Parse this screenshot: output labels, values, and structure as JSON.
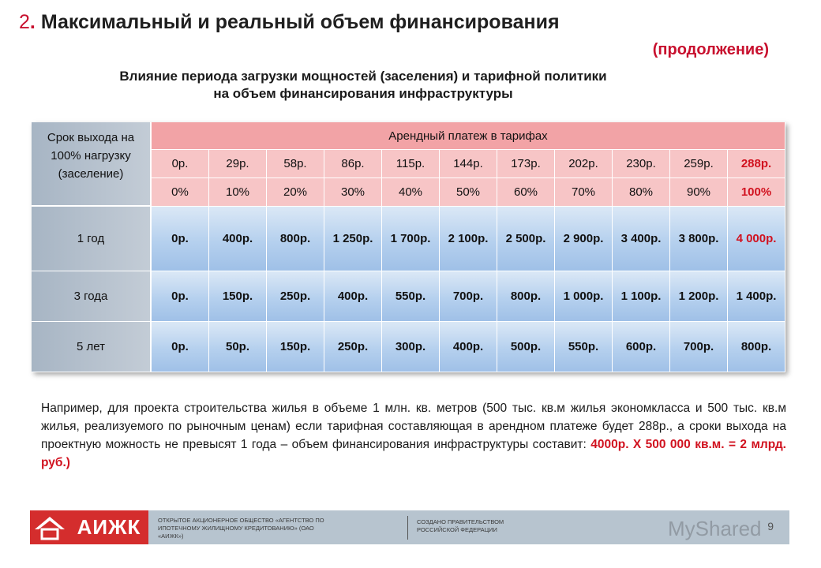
{
  "title": {
    "number": "2",
    "dot": ".",
    "text": "Максимальный и реальный объем финансирования"
  },
  "continuation": "(продолжение)",
  "heading": {
    "line1": "Влияние периода загрузки мощностей (заселения) и тарифной политики",
    "line2": "на объем финансирования инфраструктуры"
  },
  "table": {
    "corner": "Срок выхода на 100% нагрузку (заселение)",
    "group_header": "Арендный платеж в тарифах",
    "tariffs": [
      "0р.",
      "29р.",
      "58р.",
      "86р.",
      "115р.",
      "144р.",
      "173р.",
      "202р.",
      "230р.",
      "259р.",
      "288р."
    ],
    "percents": [
      "0%",
      "10%",
      "20%",
      "30%",
      "40%",
      "50%",
      "60%",
      "70%",
      "80%",
      "90%",
      "100%"
    ],
    "rows": [
      {
        "label": "1 год",
        "values": [
          "0р.",
          "400р.",
          "800р.",
          "1 250р.",
          "1 700р.",
          "2 100р.",
          "2 500р.",
          "2 900р.",
          "3 400р.",
          "3 800р.",
          "4 000р."
        ]
      },
      {
        "label": "3 года",
        "values": [
          "0р.",
          "150р.",
          "250р.",
          "400р.",
          "550р.",
          "700р.",
          "800р.",
          "1 000р.",
          "1 100р.",
          "1 200р.",
          "1 400р."
        ]
      },
      {
        "label": "5 лет",
        "values": [
          "0р.",
          "50р.",
          "150р.",
          "250р.",
          "300р.",
          "400р.",
          "500р.",
          "550р.",
          "600р.",
          "700р.",
          "800р."
        ]
      }
    ]
  },
  "note": {
    "text": "Например, для проекта строительства жилья в объеме 1 млн. кв. метров (500 тыс. кв.м жилья экономкласса и 500 тыс. кв.м жилья, реализуемого по рыночным ценам) если тарифная составляющая в арендном платеже будет 288р., а сроки выхода на проектную можность не превысят 1 года – объем финансирования инфраструктуры составит:",
    "highlight": "4000р. Х 500 000 кв.м. = 2 млрд. руб.)"
  },
  "footer": {
    "logo": "АИЖК",
    "org": "ОТКРЫТОЕ АКЦИОНЕРНОЕ ОБЩЕСТВО «АГЕНТСТВО ПО ИПОТЕЧНОМУ ЖИЛИЩНОМУ КРЕДИТОВАНИЮ» (ОАО «АИЖК»)",
    "gov": "СОЗДАНО ПРАВИТЕЛЬСТВОМ РОССИЙСКОЙ ФЕДЕРАЦИИ",
    "page": "9",
    "watermark": "MyShared"
  },
  "colors": {
    "accent_red": "#d1121f",
    "header_pink": "#f2a3a6",
    "cell_blue": "#b5d0ee",
    "row_gray": "#b3bfcc"
  }
}
